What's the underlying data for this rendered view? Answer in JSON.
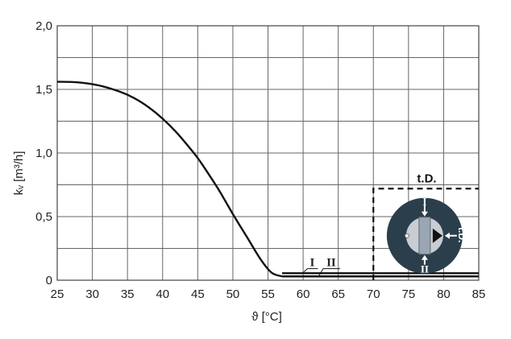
{
  "chart_data": {
    "type": "line",
    "title": "",
    "xlabel": "ϑ [°C]",
    "ylabel": "kᵥ [m³/h]",
    "xlim": [
      25,
      85
    ],
    "ylim": [
      0,
      2.0
    ],
    "xticks": [
      25,
      30,
      35,
      40,
      45,
      50,
      55,
      60,
      65,
      70,
      75,
      80,
      85
    ],
    "yticks": [
      0,
      0.5,
      1.0,
      1.5,
      2.0
    ],
    "ytick_labels": [
      "0",
      "0,5",
      "1,0",
      "1,5",
      "2,0"
    ],
    "grid": true,
    "series": [
      {
        "name": "",
        "x": [
          25,
          28,
          31,
          34,
          36,
          38,
          40,
          42,
          44,
          45,
          46,
          48,
          50,
          52,
          54,
          55.5,
          57
        ],
        "y": [
          1.56,
          1.555,
          1.53,
          1.48,
          1.43,
          1.36,
          1.27,
          1.16,
          1.03,
          0.96,
          0.88,
          0.71,
          0.52,
          0.34,
          0.16,
          0.06,
          0.03
        ]
      },
      {
        "name": "I",
        "x": [
          57,
          85
        ],
        "y": [
          0.055,
          0.055
        ]
      },
      {
        "name": "II",
        "x": [
          57,
          85
        ],
        "y": [
          0.03,
          0.03
        ]
      }
    ],
    "annotations": [
      {
        "text": "I",
        "x": 61.3,
        "y": 0.11
      },
      {
        "text": "II",
        "x": 64.0,
        "y": 0.11
      },
      {
        "text": "t.D.",
        "x": 77.6,
        "y": 0.77
      }
    ],
    "inset": {
      "box_x": [
        70,
        85
      ],
      "box_y": [
        0,
        0.72
      ],
      "labels": {
        "top": "I",
        "bottom": "II",
        "right": "t.D."
      },
      "colors": {
        "disc": "#2b3e4b",
        "core": "#c8cdd3",
        "stem": "#9aa7b3",
        "arrow": "#ffffff",
        "pointer": "#111111"
      }
    }
  }
}
